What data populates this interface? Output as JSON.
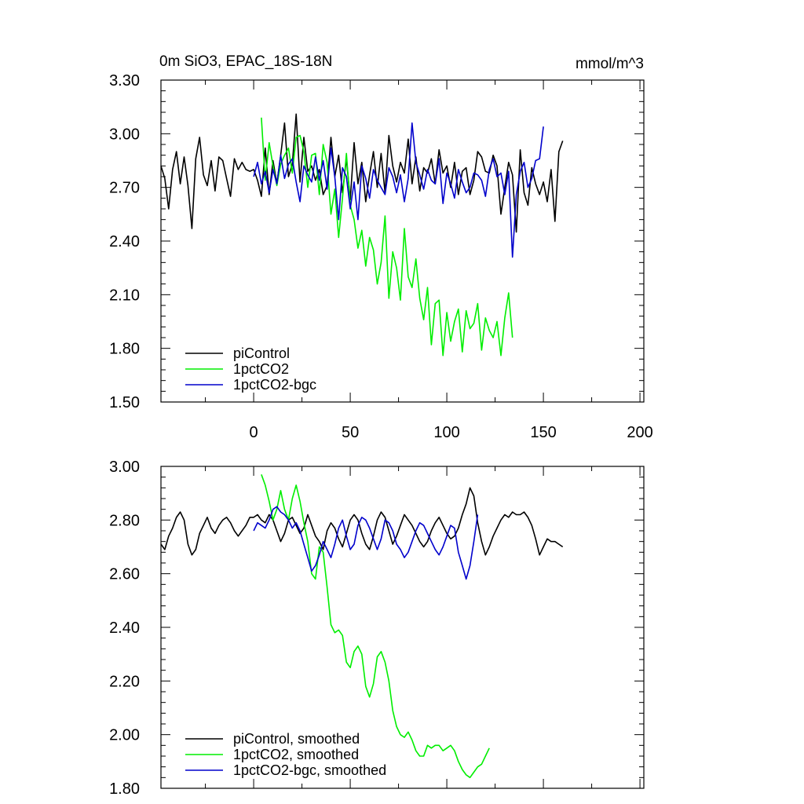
{
  "chart_data": [
    {
      "type": "line",
      "title": "0m SiO3, EPAC_18S-18N",
      "units": "mmol/m^3",
      "xlim": [
        -48,
        202
      ],
      "ylim": [
        1.5,
        3.3
      ],
      "x_ticks": [
        0,
        50,
        100,
        150,
        200
      ],
      "y_ticks": [
        "1.50",
        "1.80",
        "2.10",
        "2.40",
        "2.70",
        "3.00",
        "3.30"
      ],
      "legend_position": "bottom-left",
      "series": [
        {
          "name": "piControl",
          "color": "#000000",
          "x_start": -48,
          "x_step": 2,
          "values": [
            2.82,
            2.75,
            2.58,
            2.8,
            2.9,
            2.72,
            2.87,
            2.71,
            2.47,
            2.86,
            2.98,
            2.77,
            2.71,
            2.85,
            2.68,
            2.87,
            2.85,
            2.75,
            2.65,
            2.86,
            2.8,
            2.84,
            2.8,
            2.79,
            2.8,
            2.74,
            2.65,
            2.92,
            2.66,
            2.85,
            2.72,
            2.88,
            3.06,
            2.76,
            2.83,
            3.11,
            2.73,
            2.98,
            2.79,
            2.82,
            2.74,
            2.8,
            2.66,
            2.71,
            2.98,
            2.76,
            2.88,
            2.67,
            2.86,
            2.63,
            2.95,
            2.72,
            2.84,
            2.62,
            2.77,
            2.9,
            2.7,
            2.89,
            2.67,
            2.99,
            2.82,
            2.73,
            2.84,
            2.78,
            2.97,
            2.72,
            2.87,
            2.68,
            2.81,
            2.78,
            2.86,
            2.72,
            2.91,
            2.78,
            2.82,
            2.7,
            2.84,
            2.66,
            2.79,
            2.81,
            2.66,
            2.74,
            2.9,
            2.87,
            2.79,
            2.78,
            2.88,
            2.82,
            2.55,
            2.7,
            2.84,
            2.77,
            2.45,
            2.91,
            2.67,
            2.6,
            2.81,
            2.72,
            2.66,
            2.73,
            2.62,
            2.8,
            2.51,
            2.9,
            2.96
          ],
          "smoothed": [
            2.71,
            2.69,
            2.74,
            2.77,
            2.81,
            2.83,
            2.8,
            2.71,
            2.67,
            2.69,
            2.75,
            2.78,
            2.81,
            2.77,
            2.75,
            2.78,
            2.8,
            2.81,
            2.79,
            2.76,
            2.74,
            2.76,
            2.78,
            2.81,
            2.81,
            2.82,
            2.8,
            2.79,
            2.82,
            2.8,
            2.76,
            2.72,
            2.75,
            2.8,
            2.81,
            2.78,
            2.75,
            2.77,
            2.82,
            2.78,
            2.74,
            2.72,
            2.69,
            2.76,
            2.79,
            2.77,
            2.73,
            2.7,
            2.75,
            2.8,
            2.82,
            2.8,
            2.75,
            2.71,
            2.69,
            2.74,
            2.8,
            2.83,
            2.81,
            2.76,
            2.71,
            2.74,
            2.78,
            2.82,
            2.8,
            2.78,
            2.75,
            2.72,
            2.7,
            2.72,
            2.76,
            2.79,
            2.81,
            2.78,
            2.75,
            2.73,
            2.74,
            2.77,
            2.82,
            2.86,
            2.92,
            2.89,
            2.79,
            2.72,
            2.67,
            2.7,
            2.74,
            2.77,
            2.8,
            2.82,
            2.81,
            2.83,
            2.82,
            2.82,
            2.83,
            2.81,
            2.78,
            2.73,
            2.67,
            2.7,
            2.73,
            2.72,
            2.72,
            2.71,
            2.7
          ]
        },
        {
          "name": "1pctCO2",
          "color": "#00ee00",
          "x_start": 4,
          "x_step": 2,
          "values": [
            3.09,
            2.74,
            2.95,
            2.82,
            2.71,
            2.83,
            2.88,
            2.92,
            2.78,
            2.98,
            2.99,
            2.9,
            2.7,
            2.88,
            2.89,
            2.66,
            2.94,
            2.84,
            2.55,
            2.69,
            2.42,
            2.64,
            2.89,
            2.6,
            2.52,
            2.36,
            2.46,
            2.26,
            2.42,
            2.35,
            2.16,
            2.28,
            2.54,
            2.08,
            2.34,
            2.25,
            2.07,
            2.47,
            2.2,
            2.14,
            2.3,
            2.08,
            1.96,
            2.14,
            1.82,
            2.05,
            2.07,
            1.76,
            2.0,
            1.84,
            1.95,
            2.02,
            1.78,
            2.01,
            1.91,
            1.94,
            2.05,
            1.79,
            1.97,
            1.9,
            1.86,
            1.95,
            1.76,
            1.97,
            2.11,
            1.86
          ],
          "smoothed": [
            2.97,
            2.93,
            2.87,
            2.8,
            2.84,
            2.91,
            2.84,
            2.8,
            2.88,
            2.93,
            2.87,
            2.79,
            2.72,
            2.6,
            2.58,
            2.7,
            2.68,
            2.55,
            2.41,
            2.38,
            2.39,
            2.37,
            2.27,
            2.25,
            2.31,
            2.33,
            2.3,
            2.18,
            2.14,
            2.19,
            2.29,
            2.31,
            2.27,
            2.2,
            2.09,
            2.03,
            2.0,
            1.99,
            2.01,
            1.98,
            1.94,
            1.92,
            1.92,
            1.96,
            1.95,
            1.96,
            1.96,
            1.94,
            1.95,
            1.96,
            1.94,
            1.9,
            1.87,
            1.85,
            1.84,
            1.86,
            1.88,
            1.89,
            1.92,
            1.95
          ]
        },
        {
          "name": "1pctCO2-bgc",
          "color": "#0000cc",
          "x_start": 0,
          "x_step": 2,
          "values": [
            2.76,
            2.84,
            2.72,
            2.79,
            2.67,
            2.8,
            2.72,
            2.88,
            2.75,
            2.83,
            2.86,
            2.73,
            2.62,
            2.82,
            2.77,
            2.73,
            2.87,
            2.74,
            2.85,
            2.69,
            2.92,
            2.76,
            2.52,
            2.81,
            2.76,
            2.58,
            2.73,
            2.52,
            2.82,
            2.75,
            2.64,
            2.8,
            2.74,
            2.7,
            2.66,
            2.81,
            2.76,
            2.67,
            2.77,
            2.62,
            2.75,
            3.06,
            2.84,
            2.77,
            2.69,
            2.8,
            2.74,
            2.72,
            2.86,
            2.61,
            2.78,
            2.72,
            2.64,
            2.8,
            2.73,
            2.67,
            2.7,
            2.78,
            2.77,
            2.74,
            2.65,
            2.8,
            2.86,
            2.76,
            2.78,
            2.66,
            2.79,
            2.31,
            2.66,
            2.79,
            2.84,
            2.7,
            2.75,
            2.85,
            2.86,
            3.04
          ],
          "smoothed": [
            2.76,
            2.79,
            2.78,
            2.77,
            2.8,
            2.84,
            2.85,
            2.83,
            2.82,
            2.8,
            2.77,
            2.79,
            2.76,
            2.71,
            2.66,
            2.61,
            2.63,
            2.67,
            2.72,
            2.69,
            2.66,
            2.71,
            2.77,
            2.8,
            2.74,
            2.69,
            2.71,
            2.78,
            2.81,
            2.8,
            2.77,
            2.73,
            2.69,
            2.73,
            2.8,
            2.79,
            2.76,
            2.71,
            2.69,
            2.66,
            2.68,
            2.72,
            2.76,
            2.79,
            2.78,
            2.75,
            2.72,
            2.69,
            2.67,
            2.7,
            2.74,
            2.78,
            2.77,
            2.68,
            2.63,
            2.58,
            2.63,
            2.72,
            2.82
          ]
        }
      ]
    },
    {
      "type": "line",
      "title": "",
      "xlim": [
        -48,
        202
      ],
      "ylim": [
        1.8,
        3.0
      ],
      "x_ticks": [
        0,
        50,
        100,
        150,
        200
      ],
      "y_ticks": [
        "1.80",
        "2.00",
        "2.20",
        "2.40",
        "2.60",
        "2.80",
        "3.00"
      ],
      "legend_position": "bottom-left",
      "series_names": [
        "piControl, smoothed",
        "1pctCO2, smoothed",
        "1pctCO2-bgc, smoothed"
      ]
    }
  ]
}
